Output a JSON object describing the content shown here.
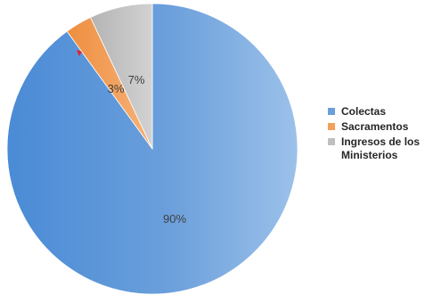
{
  "colors": {
    "colectas": "#6a9fdb",
    "sacramentos": "#f2a05a",
    "ingresos": "#bfbfbf",
    "marker": "#e8202a"
  },
  "chart_data": {
    "type": "pie",
    "title": "",
    "categories": [
      "Colectas",
      "Sacramentos",
      "Ingresos de los Ministerios"
    ],
    "values": [
      90,
      3,
      7
    ],
    "labels": [
      "90%",
      "3%",
      "7%"
    ],
    "legend_position": "right",
    "start": "top",
    "direction": "clockwise"
  },
  "legend": {
    "items": [
      {
        "label": "Colectas"
      },
      {
        "label": "Sacramentos"
      },
      {
        "label": "Ingresos de los Ministerios"
      }
    ]
  }
}
